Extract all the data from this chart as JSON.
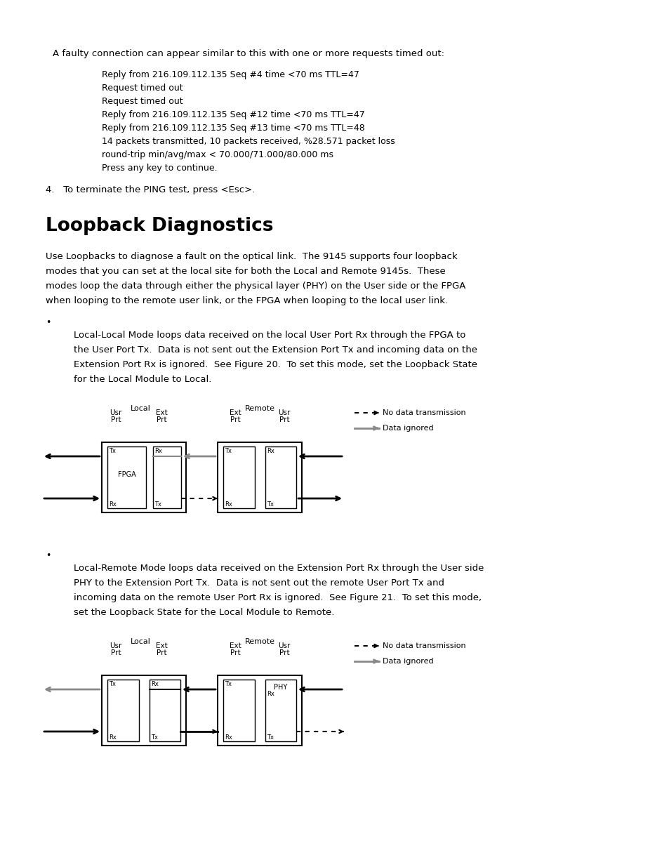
{
  "bg_color": "#ffffff",
  "intro_text": "A faulty connection can appear similar to this with one or more requests timed out:",
  "code_lines": [
    "Reply from 216.109.112.135 Seq #4 time <70 ms TTL=47",
    "Request timed out",
    "Request timed out",
    "Reply from 216.109.112.135 Seq #12 time <70 ms TTL=47",
    "Reply from 216.109.112.135 Seq #13 time <70 ms TTL=48",
    "14 packets transmitted, 10 packets received, %28.571 packet loss",
    "round-trip min/avg/max < 70.000/71.000/80.000 ms",
    "Press any key to continue."
  ],
  "item4_text": "4.   To terminate the PING test, press <Esc>.",
  "section_title": "Loopback Diagnostics",
  "para1_lines": [
    "Use Loopbacks to diagnose a fault on the optical link.  The 9145 supports four loopback",
    "modes that you can set at the local site for both the Local and Remote 9145s.  These",
    "modes loop the data through either the physical layer (PHY) on the User side or the FPGA",
    "when looping to the remote user link, or the FPGA when looping to the local user link."
  ],
  "bullet1_lines": [
    "Local-Local Mode loops data received on the local User Port Rx through the FPGA to",
    "the User Port Tx.  Data is not sent out the Extension Port Tx and incoming data on the",
    "Extension Port Rx is ignored.  See Figure 20.  To set this mode, set the Loopback State",
    "for the Local Module to Local."
  ],
  "bullet2_lines": [
    "Local-Remote Mode loops data received on the Extension Port Rx through the User side",
    "PHY to the Extension Port Tx.  Data is not sent out the remote User Port Tx and",
    "incoming data on the remote User Port Rx is ignored.  See Figure 21.  To set this mode,",
    "set the Loopback State for the Local Module to Remote."
  ],
  "legend_no_data": "No data transmission",
  "legend_ignored": "Data ignored"
}
